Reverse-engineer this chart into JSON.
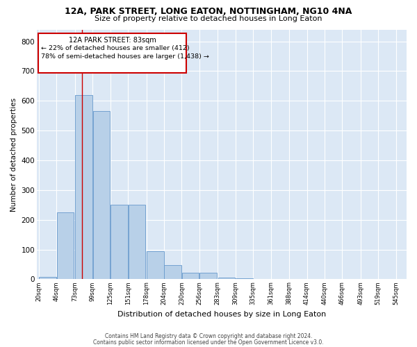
{
  "title1": "12A, PARK STREET, LONG EATON, NOTTINGHAM, NG10 4NA",
  "title2": "Size of property relative to detached houses in Long Eaton",
  "xlabel": "Distribution of detached houses by size in Long Eaton",
  "ylabel": "Number of detached properties",
  "footer1": "Contains HM Land Registry data © Crown copyright and database right 2024.",
  "footer2": "Contains public sector information licensed under the Open Government Licence v3.0.",
  "annotation_line1": "12A PARK STREET: 83sqm",
  "annotation_line2": "← 22% of detached houses are smaller (412)",
  "annotation_line3": "78% of semi-detached houses are larger (1,438) →",
  "property_size": 83,
  "bar_color": "#b8d0e8",
  "bar_edge_color": "#6699cc",
  "vline_color": "#cc0000",
  "annotation_box_color": "#cc0000",
  "background_color": "#dce8f5",
  "bins_start": [
    20,
    46,
    73,
    99,
    125,
    151,
    178,
    204,
    230,
    256,
    283,
    309,
    335,
    361,
    388,
    414,
    440,
    466,
    493,
    519
  ],
  "bin_width": 26,
  "bar_heights": [
    8,
    225,
    620,
    565,
    250,
    250,
    95,
    48,
    22,
    22,
    5,
    3,
    1,
    0,
    0,
    0,
    0,
    0,
    0,
    0
  ],
  "ylim": [
    0,
    840
  ],
  "yticks": [
    0,
    100,
    200,
    300,
    400,
    500,
    600,
    700,
    800
  ],
  "tick_labels": [
    "20sqm",
    "46sqm",
    "73sqm",
    "99sqm",
    "125sqm",
    "151sqm",
    "178sqm",
    "204sqm",
    "230sqm",
    "256sqm",
    "283sqm",
    "309sqm",
    "335sqm",
    "361sqm",
    "388sqm",
    "414sqm",
    "440sqm",
    "466sqm",
    "493sqm",
    "519sqm",
    "545sqm"
  ]
}
